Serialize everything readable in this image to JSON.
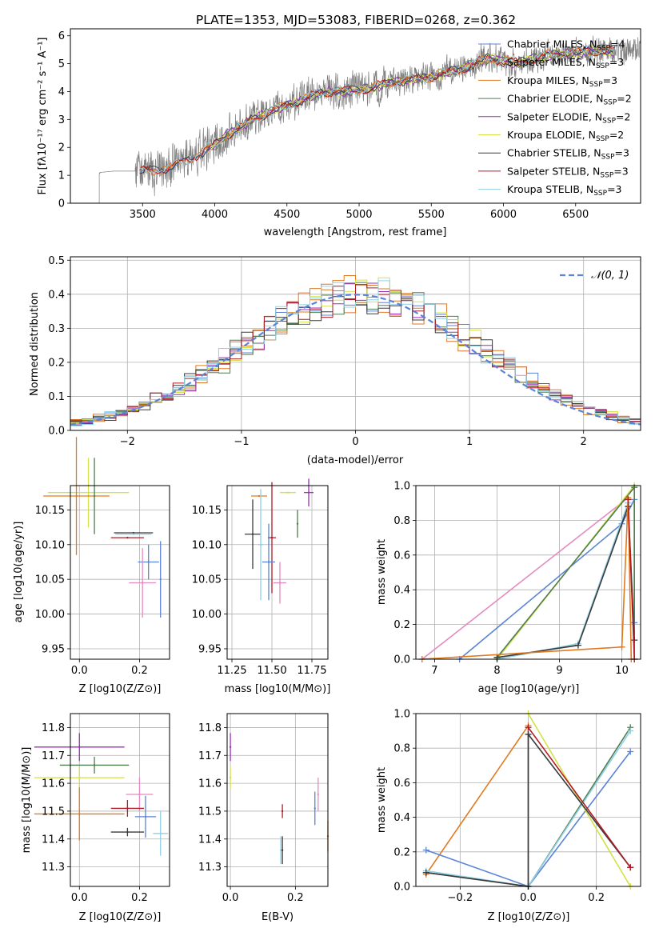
{
  "figure_title": "PLATE=1353, MJD=53083, FIBERID=0268, z=0.362",
  "colors": {
    "Chabrier MILES": "#5b83d6",
    "Salpeter MILES": "#d9772d",
    "Kroupa MILES": "#e07a1f",
    "Chabrier ELODIE": "#4f7d4f",
    "Salpeter ELODIE": "#9b2fb8",
    "Kroupa ELODIE": "#d3e046",
    "Chabrier STELIB": "#3a3a3a",
    "Salpeter STELIB": "#b01b25",
    "Kroupa STELIB": "#8fd0e6",
    "data": "#808080",
    "normal": "#5b83d6",
    "pink": "#e38bc0"
  },
  "chart_data": [
    {
      "id": "spectrum",
      "type": "line",
      "title": "PLATE=1353, MJD=53083, FIBERID=0268, z=0.362",
      "xlabel": "wavelength [Angstrom, rest frame]",
      "ylabel": "Flux [fλ10⁻¹⁷ erg cm⁻² s⁻¹ A⁻¹]",
      "xlim": [
        3000,
        6950
      ],
      "ylim": [
        0,
        6.25
      ],
      "xticks": [
        3500,
        4000,
        4500,
        5000,
        5500,
        6000,
        6500
      ],
      "yticks": [
        0,
        1,
        2,
        3,
        4,
        5,
        6
      ],
      "legend": [
        "Chabrier MILES, NSSP=4",
        "Salpeter MILES, NSSP=3",
        "Kroupa MILES, NSSP=3",
        "Chabrier ELODIE, NSSP=2",
        "Salpeter ELODIE, NSSP=2",
        "Kroupa ELODIE, NSSP=2",
        "Chabrier STELIB, NSSP=3",
        "Salpeter STELIB, NSSP=3",
        "Kroupa STELIB, NSSP=3"
      ],
      "legend_position": "top-right",
      "model_continuum": {
        "x": [
          3200,
          3300,
          3400,
          3500,
          3600,
          3700,
          3800,
          3900,
          4000,
          4100,
          4200,
          4300,
          4400,
          4500,
          4600,
          4700,
          4800,
          4900,
          5000,
          5100,
          5200,
          5300,
          5400,
          5500,
          5600,
          5700,
          5800,
          5900,
          6000,
          6100,
          6200,
          6300,
          6400,
          6500,
          6600,
          6700,
          6800
        ],
        "y": [
          1.1,
          1.15,
          1.15,
          1.15,
          1.2,
          1.3,
          1.5,
          1.8,
          2.1,
          2.5,
          2.8,
          3.1,
          3.3,
          3.5,
          3.7,
          3.9,
          4.0,
          4.0,
          4.05,
          4.15,
          4.3,
          4.4,
          4.45,
          4.55,
          4.65,
          4.8,
          5.0,
          5.2,
          5.1,
          5.0,
          5.15,
          5.3,
          5.35,
          5.4,
          5.45,
          5.45,
          5.45
        ]
      },
      "data_start": 3200
    },
    {
      "id": "residuals",
      "type": "line",
      "xlabel": "(data-model)/error",
      "ylabel": "Normed distribution",
      "xlim": [
        -2.5,
        2.5
      ],
      "ylim": [
        0,
        0.51
      ],
      "xticks": [
        -2,
        -1,
        0,
        1,
        2
      ],
      "yticks": [
        0.0,
        0.1,
        0.2,
        0.3,
        0.4,
        0.5
      ],
      "legend": [
        "𝒩(0, 1)"
      ],
      "legend_position": "top-right",
      "normal_mu": 0,
      "normal_sigma": 1,
      "bin_width": 0.1
    },
    {
      "id": "z-age",
      "type": "scatter",
      "xlabel": "Z [log10(Z/Z⊙)]",
      "ylabel": "age  [log10(age/yr)]",
      "xlim": [
        -0.03,
        0.3
      ],
      "ylim": [
        9.935,
        10.185
      ],
      "xticks": [
        0.0,
        0.2
      ],
      "yticks": [
        9.95,
        10.0,
        10.05,
        10.1,
        10.15
      ],
      "errorbars": [
        {
          "c": "Kroupa ELODIE",
          "x": 0.03,
          "y": 10.175,
          "xe": 0.27,
          "ye": 0.1
        },
        {
          "c": "Kroupa MILES",
          "x": -0.01,
          "y": 10.17,
          "xe": 0.22,
          "ye": 0.17
        },
        {
          "c": "Chabrier ELODIE",
          "x": 0.05,
          "y": 10.17,
          "ye": 0.11
        },
        {
          "c": "Chabrier STELIB",
          "x": 0.18,
          "y": 10.117,
          "xe": 0.13,
          "ye": 0.0
        },
        {
          "c": "Kroupa STELIB",
          "x": 0.18,
          "y": 10.115,
          "xe": 0.12
        },
        {
          "c": "Salpeter STELIB",
          "x": 0.16,
          "y": 10.11,
          "xe": 0.11
        },
        {
          "c": "Chabrier MILES",
          "x": 0.23,
          "y": 10.075,
          "xe": 0.07,
          "ye": 0.05
        },
        {
          "c": "pink",
          "x": 0.21,
          "y": 10.045,
          "xe": 0.09,
          "ye": 0.1
        },
        {
          "c": "Chabrier MILES",
          "x": 0.27,
          "y": 10.05,
          "ye": 0.11
        }
      ]
    },
    {
      "id": "mass-age",
      "type": "scatter",
      "xlabel": "mass [log10(M/M⊙)]",
      "ylabel": "",
      "xlim": [
        11.22,
        11.85
      ],
      "ylim": [
        9.935,
        10.185
      ],
      "xticks": [
        11.25,
        11.5,
        11.75
      ],
      "yticks": [
        9.95,
        10.0,
        10.05,
        10.1,
        10.15
      ],
      "errorbars": [
        {
          "c": "Kroupa ELODIE",
          "x": 11.6,
          "y": 10.175,
          "xe": 0.1
        },
        {
          "c": "Salpeter ELODIE",
          "x": 11.73,
          "y": 10.175,
          "xe": 0.06,
          "ye": 0.04
        },
        {
          "c": "Kroupa MILES",
          "x": 11.42,
          "y": 10.17,
          "xe": 0.1
        },
        {
          "c": "Chabrier ELODIE",
          "x": 11.66,
          "y": 10.13,
          "ye": 0.04
        },
        {
          "c": "Chabrier STELIB",
          "x": 11.38,
          "y": 10.115,
          "xe": 0.1,
          "ye": 0.1
        },
        {
          "c": "Salpeter STELIB",
          "x": 11.5,
          "y": 10.11,
          "xe": 0.05,
          "ye": 0.16
        },
        {
          "c": "Kroupa STELIB",
          "x": 11.43,
          "y": 10.1,
          "xe": 0.03,
          "ye": 0.16
        },
        {
          "c": "Chabrier MILES",
          "x": 11.48,
          "y": 10.075,
          "xe": 0.08,
          "ye": 0.11
        },
        {
          "c": "pink",
          "x": 11.55,
          "y": 10.045,
          "xe": 0.08,
          "ye": 0.06
        }
      ]
    },
    {
      "id": "age-weight",
      "type": "line",
      "xlabel": "age  [log10(age/yr)]",
      "ylabel": "mass weight",
      "xlim": [
        6.7,
        10.3
      ],
      "ylim": [
        0,
        1
      ],
      "xticks": [
        7,
        8,
        9,
        10
      ],
      "yticks": [
        0.0,
        0.2,
        0.4,
        0.6,
        0.8,
        1.0
      ],
      "series": [
        {
          "c": "pink",
          "x": [
            6.8,
            10.1
          ],
          "y": [
            0.0,
            0.93
          ]
        },
        {
          "c": "Chabrier MILES",
          "x": [
            7.4,
            10.0,
            10.2,
            10.2
          ],
          "y": [
            0.0,
            0.78,
            0.92,
            0.21
          ]
        },
        {
          "c": "Kroupa ELODIE",
          "x": [
            8.0,
            10.2,
            10.2
          ],
          "y": [
            0.0,
            1.0,
            0.0
          ]
        },
        {
          "c": "Chabrier ELODIE",
          "x": [
            8.0,
            10.2,
            10.2
          ],
          "y": [
            0.01,
            0.99,
            0.0
          ]
        },
        {
          "c": "Kroupa STELIB",
          "x": [
            8.0,
            9.3,
            10.1,
            10.2
          ],
          "y": [
            0.0,
            0.09,
            0.9,
            0.11
          ]
        },
        {
          "c": "Chabrier STELIB",
          "x": [
            8.0,
            9.3,
            10.1,
            10.2
          ],
          "y": [
            0.01,
            0.08,
            0.88,
            0.11
          ]
        },
        {
          "c": "Kroupa MILES",
          "x": [
            6.8,
            10.0,
            10.1,
            10.15
          ],
          "y": [
            0.0,
            0.07,
            0.93,
            0.0
          ]
        },
        {
          "c": "Salpeter STELIB",
          "x": [
            10.1,
            10.2
          ],
          "y": [
            0.92,
            0.0
          ]
        }
      ]
    },
    {
      "id": "z-mass",
      "type": "scatter",
      "xlabel": "Z [log10(Z/Z⊙)]",
      "ylabel": "mass [log10(M/M⊙)]",
      "xlim": [
        -0.03,
        0.3
      ],
      "ylim": [
        11.23,
        11.85
      ],
      "xticks": [
        0.0,
        0.2
      ],
      "yticks": [
        11.3,
        11.4,
        11.5,
        11.6,
        11.7,
        11.8
      ],
      "errorbars": [
        {
          "c": "Salpeter ELODIE",
          "x": 0.0,
          "y": 11.73,
          "xe": 0.3,
          "ye": 0.1
        },
        {
          "c": "Chabrier ELODIE",
          "x": 0.05,
          "y": 11.665,
          "xe": 0.23,
          "ye": 0.06
        },
        {
          "c": "Kroupa ELODIE",
          "x": 0.0,
          "y": 11.62,
          "xe": 0.3,
          "ye": 0.08
        },
        {
          "c": "pink",
          "x": 0.2,
          "y": 11.56,
          "xe": 0.09,
          "ye": 0.12
        },
        {
          "c": "Salpeter STELIB",
          "x": 0.16,
          "y": 11.51,
          "xe": 0.11,
          "ye": 0.06
        },
        {
          "c": "Kroupa MILES",
          "x": 0.0,
          "y": 11.49,
          "xe": 0.3,
          "ye": 0.19
        },
        {
          "c": "Chabrier MILES",
          "x": 0.22,
          "y": 11.48,
          "xe": 0.07,
          "ye": 0.15
        },
        {
          "c": "Kroupa STELIB",
          "x": 0.27,
          "y": 11.42,
          "xe": 0.05,
          "ye": 0.16
        },
        {
          "c": "Chabrier STELIB",
          "x": 0.16,
          "y": 11.425,
          "xe": 0.11,
          "ye": 0.03
        }
      ]
    },
    {
      "id": "ebv-mass",
      "type": "scatter",
      "xlabel": "E(B-V)",
      "ylabel": "",
      "xlim": [
        -0.01,
        0.3
      ],
      "ylim": [
        11.23,
        11.85
      ],
      "xticks": [
        0.0,
        0.2
      ],
      "yticks": [
        11.3,
        11.4,
        11.5,
        11.6,
        11.7,
        11.8
      ],
      "errorbars": [
        {
          "c": "Salpeter ELODIE",
          "x": 0.0,
          "y": 11.73,
          "ye": 0.1
        },
        {
          "c": "Kroupa ELODIE",
          "x": 0.0,
          "y": 11.62,
          "ye": 0.08
        },
        {
          "c": "pink",
          "x": 0.27,
          "y": 11.56,
          "ye": 0.12
        },
        {
          "c": "Chabrier MILES",
          "x": 0.26,
          "y": 11.51,
          "ye": 0.12
        },
        {
          "c": "Kroupa MILES",
          "x": 0.3,
          "y": 11.41,
          "ye": 0.11
        },
        {
          "c": "Salpeter STELIB",
          "x": 0.16,
          "y": 11.5,
          "ye": 0.05
        },
        {
          "c": "Kroupa STELIB",
          "x": 0.155,
          "y": 11.36,
          "ye": 0.1
        },
        {
          "c": "Chabrier STELIB",
          "x": 0.16,
          "y": 11.36,
          "ye": 0.1
        }
      ]
    },
    {
      "id": "z-weight",
      "type": "line",
      "xlabel": "Z [log10(Z/Z⊙)]",
      "ylabel": "mass weight",
      "xlim": [
        -0.33,
        0.33
      ],
      "ylim": [
        0,
        1
      ],
      "xticks": [
        -0.2,
        0.0,
        0.2
      ],
      "yticks": [
        0.0,
        0.2,
        0.4,
        0.6,
        0.8,
        1.0
      ],
      "series": [
        {
          "c": "Kroupa MILES",
          "x": [
            -0.3,
            0.0,
            0.0
          ],
          "y": [
            0.07,
            0.93,
            0.0
          ]
        },
        {
          "c": "Chabrier MILES",
          "x": [
            -0.3,
            0.0,
            0.3
          ],
          "y": [
            0.21,
            0.0,
            0.78
          ]
        },
        {
          "c": "Kroupa ELODIE",
          "x": [
            0.0,
            0.3
          ],
          "y": [
            1.0,
            0.0
          ]
        },
        {
          "c": "Chabrier ELODIE",
          "x": [
            -0.3,
            0.0,
            0.3
          ],
          "y": [
            0.08,
            0.0,
            0.92
          ]
        },
        {
          "c": "Kroupa STELIB",
          "x": [
            -0.3,
            0.0,
            0.3
          ],
          "y": [
            0.09,
            0.0,
            0.9
          ]
        },
        {
          "c": "Chabrier STELIB",
          "x": [
            -0.3,
            0.0,
            0.0,
            0.3
          ],
          "y": [
            0.08,
            0.0,
            0.88,
            0.11
          ]
        },
        {
          "c": "Salpeter STELIB",
          "x": [
            0.0,
            0.3
          ],
          "y": [
            0.92,
            0.11
          ]
        }
      ]
    }
  ]
}
